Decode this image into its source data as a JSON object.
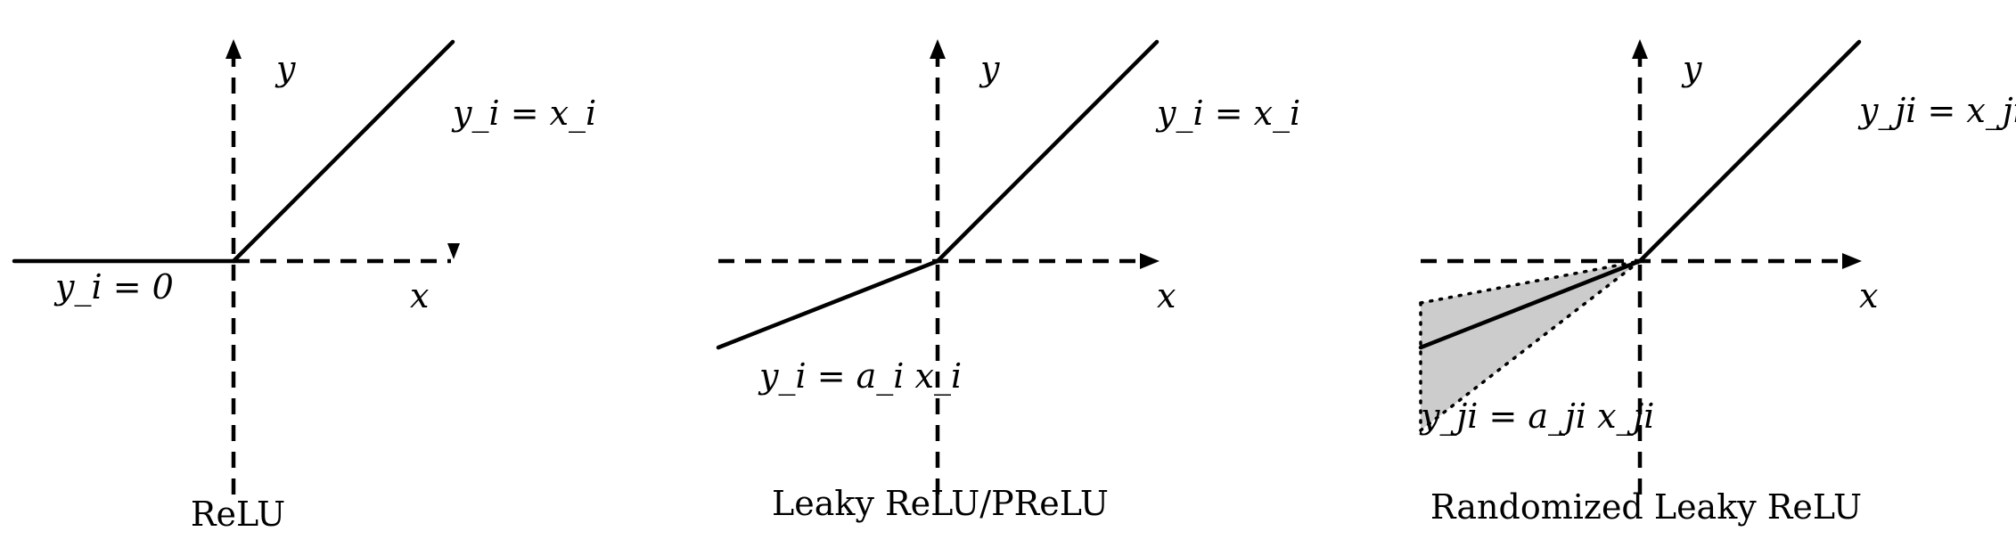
{
  "panels": [
    {
      "caption": "ReLU",
      "axis_labels": {
        "x": "x",
        "y": "y"
      },
      "positive_label": "y_i = x_i",
      "negative_label": "y_i = 0"
    },
    {
      "caption": "Leaky ReLU/PReLU",
      "axis_labels": {
        "x": "x",
        "y": "y"
      },
      "positive_label": "y_i = x_i",
      "negative_label": "y_i = a_i x_i"
    },
    {
      "caption": "Randomized Leaky ReLU",
      "axis_labels": {
        "x": "x",
        "y": "y"
      },
      "positive_label": "y_ji = x_ji",
      "negative_label": "y_ji = a_ji x_ji"
    }
  ],
  "colors": {
    "line": "#000000",
    "shaded_range": "#cccccc",
    "background": "#ffffff"
  }
}
